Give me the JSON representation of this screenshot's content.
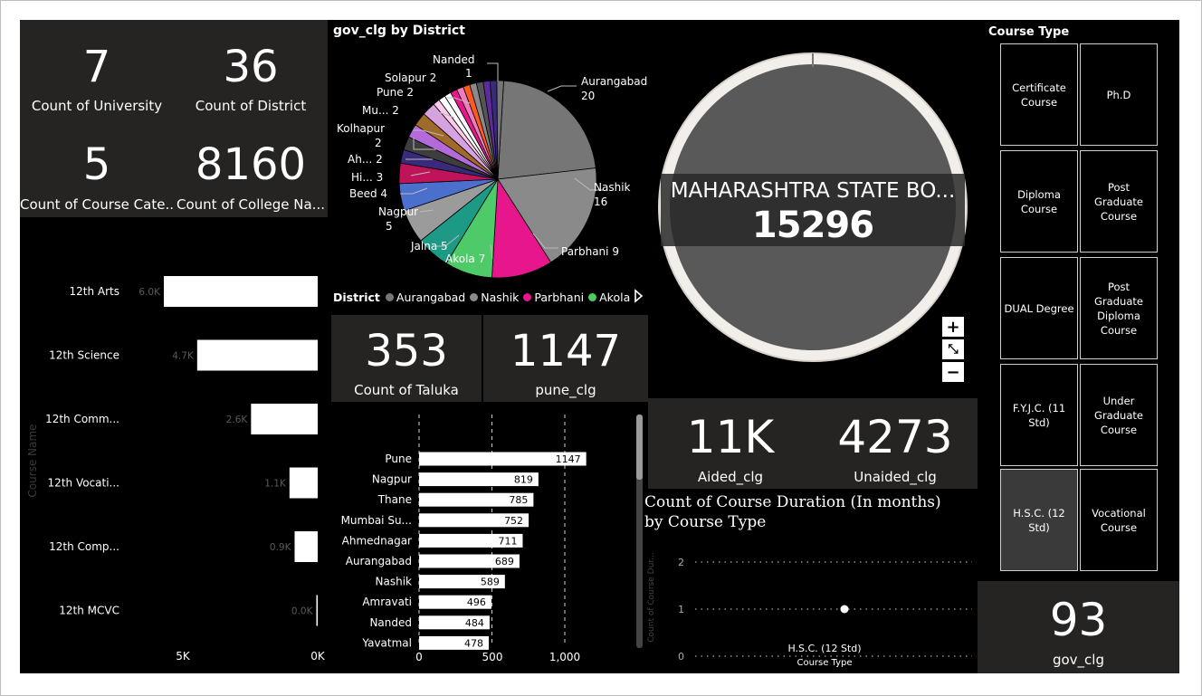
{
  "kpis": {
    "university": {
      "value": "7",
      "label": "Count of University"
    },
    "district": {
      "value": "36",
      "label": "Count of District"
    },
    "course_category": {
      "value": "5",
      "label": "Count of Course Cate..."
    },
    "college_name": {
      "value": "8160",
      "label": "Count of College Na..."
    },
    "taluka": {
      "value": "353",
      "label": "Count of Taluka"
    },
    "pune_clg": {
      "value": "1147",
      "label": "pune_clg"
    },
    "aided": {
      "value": "11K",
      "label": "Aided_clg"
    },
    "unaided": {
      "value": "4273",
      "label": "Unaided_clg"
    },
    "gov_clg": {
      "value": "93",
      "label": "gov_clg"
    }
  },
  "pie": {
    "title": "gov_clg by District",
    "legend_title": "District",
    "legend_items": [
      {
        "name": "Aurangabad",
        "color": "#767676"
      },
      {
        "name": "Nashik",
        "color": "#8a8a8a"
      },
      {
        "name": "Parbhani",
        "color": "#e8168d"
      },
      {
        "name": "Akola",
        "color": "#4ecb68"
      }
    ],
    "labels": {
      "aurangabad": "Aurangabad",
      "aurangabad_v": "20",
      "nashik": "Nashik",
      "nashik_v": "16",
      "parbhani": "Parbhani 9",
      "akola": "Akola 7",
      "jalna": "Jalna 5",
      "nagpur": "Nagpur",
      "nagpur_v": "5",
      "beed": "Beed 4",
      "hi": "Hi... 3",
      "ah": "Ah... 2",
      "kolhapur": "Kolhapur",
      "kolhapur_v": "2",
      "mu": "Mu... 2",
      "pune": "Pune 2",
      "solapur": "Solapur 2",
      "nanded": "Nanded",
      "nanded_v": "1"
    }
  },
  "map": {
    "label": "MAHARASHTRA STATE BO...",
    "value": "15296",
    "zoom_in": "+",
    "fit": "⤡",
    "zoom_out": "−"
  },
  "course_bar": {
    "axis_title": "Course Name",
    "x_ticks": [
      "5K",
      "0K"
    ]
  },
  "district_bar": {
    "x_ticks": [
      "0",
      "500",
      "1,000"
    ]
  },
  "duration_chart": {
    "title": "Count of Course Duration (In months) by Course Type",
    "y_axis_title": "Count of Course Dur...",
    "x_axis_title": "Course Type"
  },
  "slicer": {
    "title": "Course Type",
    "items": [
      {
        "label": "Certificate Course",
        "selected": false
      },
      {
        "label": "Ph.D",
        "selected": false
      },
      {
        "label": "Diploma Course",
        "selected": false
      },
      {
        "label": "Post Graduate Course",
        "selected": false
      },
      {
        "label": "DUAL Degree",
        "selected": false
      },
      {
        "label": "Post Graduate Diploma Course",
        "selected": false
      },
      {
        "label": "F.Y.J.C. (11 Std)",
        "selected": false
      },
      {
        "label": "Under Graduate Course",
        "selected": false
      },
      {
        "label": "H.S.C. (12 Std)",
        "selected": true
      },
      {
        "label": "Vocational Course",
        "selected": false
      }
    ]
  },
  "chart_data": [
    {
      "type": "pie",
      "title": "gov_clg by District",
      "categories": [
        "Aurangabad",
        "Nashik",
        "Parbhani",
        "Akola",
        "Jalna",
        "Nagpur",
        "Beed",
        "Hi...",
        "Ah...",
        "Kolhapur",
        "Mu...",
        "Pune",
        "Solapur",
        "Nanded"
      ],
      "values": [
        20,
        16,
        9,
        7,
        5,
        5,
        4,
        3,
        2,
        2,
        2,
        2,
        2,
        1
      ],
      "colors": [
        "#767676",
        "#8a8a8a",
        "#e8168d",
        "#4ecb68",
        "#1d9a86",
        "#9b9b9b",
        "#4a6fcc",
        "#c0145a",
        "#3a2a7a",
        "#3d3d3d",
        "#b46ad8",
        "#a06a2a",
        "#d7a2e0",
        "#ffc9ec",
        "#ffffff",
        "#ffffff",
        "#e8168d",
        "#f07cc0",
        "#ff5a1f",
        "#8a8a8a",
        "#555555",
        "#5f2a9a",
        "#3a2a7a"
      ],
      "extra_small_slices": 10,
      "legend": [
        "Aurangabad",
        "Nashik",
        "Parbhani",
        "Akola"
      ]
    },
    {
      "type": "bar",
      "orientation": "horizontal",
      "categories": [
        "12th Arts",
        "12th Science",
        "12th Comm...",
        "12th Vocati...",
        "12th Comp...",
        "12th MCVC"
      ],
      "values": [
        6000,
        4700,
        2600,
        1100,
        900,
        0
      ],
      "data_labels": [
        "6.0K",
        "4.7K",
        "2.6K",
        "1.1K",
        "0.9K",
        "0.0K"
      ],
      "xlim": [
        0,
        6000
      ],
      "x_ticks": [
        "5K",
        "0K"
      ],
      "ylabel": "Course Name",
      "reversed": true
    },
    {
      "type": "bar",
      "orientation": "horizontal",
      "categories": [
        "Pune",
        "Nagpur",
        "Thane",
        "Mumbai Su...",
        "Ahmednagar",
        "Aurangabad",
        "Nashik",
        "Amravati",
        "Nanded",
        "Yavatmal"
      ],
      "values": [
        1147,
        819,
        785,
        752,
        711,
        689,
        589,
        496,
        484,
        478
      ],
      "xlim": [
        0,
        1250
      ],
      "x_ticks": [
        "0",
        "500",
        "1,000"
      ]
    },
    {
      "type": "scatter",
      "title": "Count of Course Duration (In months) by Course Type",
      "categories": [
        "H.S.C. (12 Std)"
      ],
      "values": [
        1
      ],
      "ylim": [
        0,
        2
      ],
      "y_ticks": [
        "0",
        "1",
        "2"
      ],
      "xlabel": "Course Type",
      "ylabel": "Count of Course Dur..."
    }
  ]
}
